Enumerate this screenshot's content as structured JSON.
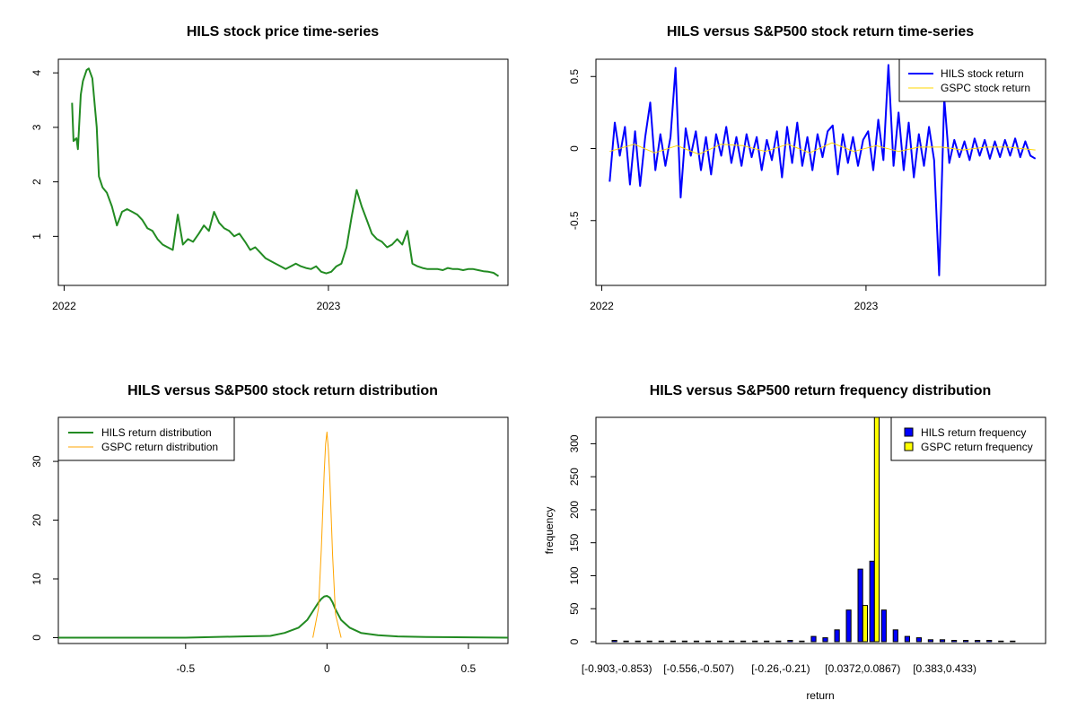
{
  "chart_data": [
    {
      "type": "line",
      "title": "HILS stock price time-series",
      "xlabel": "",
      "ylabel": "",
      "x_ticks": [
        "2022",
        "2023"
      ],
      "y_ticks": [
        1,
        2,
        3,
        4
      ],
      "ylim": [
        0.1,
        4.25
      ],
      "colors": {
        "series": "#228B22"
      },
      "series": [
        {
          "x": [
            "2022-01-12",
            "2022-01-14",
            "2022-01-18",
            "2022-01-20",
            "2022-01-24",
            "2022-01-27",
            "2022-02-01",
            "2022-02-04",
            "2022-02-09",
            "2022-02-15",
            "2022-02-18",
            "2022-02-23",
            "2022-03-01",
            "2022-03-08",
            "2022-03-15",
            "2022-03-22",
            "2022-03-29",
            "2022-04-05",
            "2022-04-12",
            "2022-04-19",
            "2022-04-26",
            "2022-05-03",
            "2022-05-10",
            "2022-05-17",
            "2022-05-24",
            "2022-05-31",
            "2022-06-07",
            "2022-06-14",
            "2022-06-21",
            "2022-06-28",
            "2022-07-06",
            "2022-07-13",
            "2022-07-20",
            "2022-07-27",
            "2022-08-03",
            "2022-08-10",
            "2022-08-17",
            "2022-08-24",
            "2022-08-31",
            "2022-09-08",
            "2022-09-15",
            "2022-09-22",
            "2022-09-29",
            "2022-10-06",
            "2022-10-13",
            "2022-10-20",
            "2022-10-27",
            "2022-11-03",
            "2022-11-10",
            "2022-11-17",
            "2022-11-24",
            "2022-12-01",
            "2022-12-08",
            "2022-12-15",
            "2022-12-22",
            "2022-12-29",
            "2023-01-05",
            "2023-01-12",
            "2023-01-19",
            "2023-01-26",
            "2023-02-02",
            "2023-02-09",
            "2023-02-16",
            "2023-02-23",
            "2023-03-02",
            "2023-03-09",
            "2023-03-16",
            "2023-03-23",
            "2023-03-30",
            "2023-04-06",
            "2023-04-13",
            "2023-04-20",
            "2023-04-27",
            "2023-05-04",
            "2023-05-11",
            "2023-05-18",
            "2023-05-25",
            "2023-06-01",
            "2023-06-08",
            "2023-06-15",
            "2023-06-22",
            "2023-06-29",
            "2023-07-06",
            "2023-07-13",
            "2023-07-20",
            "2023-07-27",
            "2023-08-03",
            "2023-08-10",
            "2023-08-17",
            "2023-08-24"
          ],
          "y": [
            3.45,
            2.75,
            2.8,
            2.6,
            3.6,
            3.85,
            4.05,
            4.08,
            3.9,
            3.0,
            2.1,
            1.9,
            1.8,
            1.55,
            1.2,
            1.45,
            1.5,
            1.45,
            1.4,
            1.3,
            1.15,
            1.1,
            0.95,
            0.85,
            0.8,
            0.75,
            1.4,
            0.85,
            0.95,
            0.9,
            1.05,
            1.2,
            1.1,
            1.45,
            1.25,
            1.15,
            1.1,
            1.0,
            1.05,
            0.9,
            0.75,
            0.8,
            0.7,
            0.6,
            0.55,
            0.5,
            0.45,
            0.4,
            0.45,
            0.5,
            0.45,
            0.42,
            0.4,
            0.45,
            0.35,
            0.32,
            0.35,
            0.45,
            0.5,
            0.8,
            1.35,
            1.85,
            1.55,
            1.3,
            1.05,
            0.95,
            0.9,
            0.8,
            0.85,
            0.95,
            0.85,
            1.1,
            0.5,
            0.45,
            0.42,
            0.4,
            0.4,
            0.4,
            0.38,
            0.42,
            0.4,
            0.4,
            0.38,
            0.4,
            0.4,
            0.38,
            0.36,
            0.35,
            0.33,
            0.27
          ]
        }
      ]
    },
    {
      "type": "line",
      "title": "HILS versus S&P500 stock return time-series",
      "xlabel": "",
      "ylabel": "",
      "x_ticks": [
        "2022",
        "2023"
      ],
      "y_ticks": [
        -0.5,
        0.0,
        0.5
      ],
      "ylim": [
        -0.95,
        0.62
      ],
      "legend": {
        "placement": "top-right",
        "entries": [
          "HILS stock return",
          "GSPC stock return"
        ]
      },
      "colors": {
        "HILS": "#0000FF",
        "GSPC": "#FFD700"
      },
      "series": [
        {
          "name": "HILS stock return",
          "x": [
            "2022-01-12",
            "2022-01-19",
            "2022-01-26",
            "2022-02-02",
            "2022-02-09",
            "2022-02-16",
            "2022-02-23",
            "2022-03-02",
            "2022-03-09",
            "2022-03-16",
            "2022-03-23",
            "2022-03-30",
            "2022-04-06",
            "2022-04-13",
            "2022-04-20",
            "2022-04-27",
            "2022-05-04",
            "2022-05-11",
            "2022-05-18",
            "2022-05-25",
            "2022-06-01",
            "2022-06-08",
            "2022-06-15",
            "2022-06-22",
            "2022-06-29",
            "2022-07-06",
            "2022-07-13",
            "2022-07-20",
            "2022-07-27",
            "2022-08-03",
            "2022-08-10",
            "2022-08-17",
            "2022-08-24",
            "2022-08-31",
            "2022-09-07",
            "2022-09-14",
            "2022-09-21",
            "2022-09-28",
            "2022-10-05",
            "2022-10-12",
            "2022-10-19",
            "2022-10-26",
            "2022-11-02",
            "2022-11-09",
            "2022-11-16",
            "2022-11-23",
            "2022-11-30",
            "2022-12-07",
            "2022-12-14",
            "2022-12-21",
            "2022-12-28",
            "2023-01-04",
            "2023-01-11",
            "2023-01-18",
            "2023-01-25",
            "2023-02-01",
            "2023-02-08",
            "2023-02-15",
            "2023-02-22",
            "2023-03-01",
            "2023-03-08",
            "2023-03-15",
            "2023-03-22",
            "2023-03-29",
            "2023-04-05",
            "2023-04-12",
            "2023-04-19",
            "2023-04-26",
            "2023-05-03",
            "2023-05-10",
            "2023-05-17",
            "2023-05-24",
            "2023-05-31",
            "2023-06-07",
            "2023-06-14",
            "2023-06-21",
            "2023-06-28",
            "2023-07-05",
            "2023-07-12",
            "2023-07-19",
            "2023-07-26",
            "2023-08-02",
            "2023-08-09",
            "2023-08-16",
            "2023-08-23"
          ],
          "y": [
            -0.23,
            0.18,
            -0.05,
            0.15,
            -0.25,
            0.12,
            -0.26,
            0.08,
            0.32,
            -0.15,
            0.1,
            -0.12,
            0.08,
            0.56,
            -0.34,
            0.14,
            -0.05,
            0.12,
            -0.15,
            0.08,
            -0.18,
            0.1,
            -0.05,
            0.15,
            -0.1,
            0.08,
            -0.12,
            0.1,
            -0.06,
            0.08,
            -0.15,
            0.06,
            -0.08,
            0.12,
            -0.2,
            0.15,
            -0.1,
            0.18,
            -0.12,
            0.08,
            -0.15,
            0.1,
            -0.06,
            0.12,
            0.16,
            -0.18,
            0.1,
            -0.1,
            0.08,
            -0.12,
            0.06,
            0.12,
            -0.15,
            0.2,
            -0.08,
            0.58,
            -0.12,
            0.25,
            -0.15,
            0.18,
            -0.2,
            0.1,
            -0.12,
            0.15,
            -0.08,
            -0.88,
            0.35,
            -0.1,
            0.06,
            -0.06,
            0.05,
            -0.08,
            0.07,
            -0.05,
            0.06,
            -0.07,
            0.05,
            -0.06,
            0.06,
            -0.05,
            0.07,
            -0.06,
            0.05,
            -0.05,
            -0.07
          ]
        },
        {
          "name": "GSPC stock return",
          "x": [
            "2022-01-12",
            "2022-02-15",
            "2022-03-15",
            "2022-04-15",
            "2022-05-15",
            "2022-06-15",
            "2022-07-15",
            "2022-08-15",
            "2022-09-15",
            "2022-10-15",
            "2022-11-15",
            "2022-12-15",
            "2023-01-15",
            "2023-02-15",
            "2023-03-15",
            "2023-04-15",
            "2023-05-15",
            "2023-06-15",
            "2023-07-15",
            "2023-08-23"
          ],
          "y": [
            -0.02,
            0.03,
            -0.03,
            0.02,
            -0.04,
            0.03,
            0.02,
            -0.02,
            0.03,
            -0.03,
            0.04,
            -0.02,
            0.02,
            -0.02,
            0.01,
            0.01,
            -0.01,
            0.01,
            0.01,
            -0.01
          ]
        }
      ]
    },
    {
      "type": "line",
      "title": "HILS versus S&P500 stock return distribution",
      "xlabel": "",
      "ylabel": "",
      "x_ticks": [
        -0.5,
        0.0,
        0.5
      ],
      "y_ticks": [
        0,
        10,
        20,
        30
      ],
      "xlim": [
        -0.95,
        0.64
      ],
      "ylim": [
        -1,
        37.5
      ],
      "legend": {
        "placement": "top-left",
        "entries": [
          "HILS return distribution",
          "GSPC return distribution"
        ]
      },
      "colors": {
        "HILS": "#228B22",
        "GSPC": "#FFA500"
      },
      "series": [
        {
          "name": "HILS return distribution",
          "x": [
            -0.95,
            -0.5,
            -0.3,
            -0.2,
            -0.15,
            -0.1,
            -0.07,
            -0.05,
            -0.03,
            -0.02,
            -0.01,
            0.0,
            0.01,
            0.02,
            0.03,
            0.05,
            0.08,
            0.12,
            0.18,
            0.25,
            0.35,
            0.5,
            0.64
          ],
          "y": [
            0.0,
            0.0,
            0.2,
            0.3,
            0.8,
            1.7,
            3.0,
            4.5,
            6.0,
            6.6,
            7.0,
            7.1,
            6.8,
            6.0,
            4.8,
            3.0,
            1.7,
            0.8,
            0.4,
            0.2,
            0.1,
            0.05,
            0.0
          ]
        },
        {
          "name": "GSPC return distribution",
          "x": [
            -0.05,
            -0.03,
            -0.02,
            -0.01,
            -0.005,
            0.0,
            0.005,
            0.01,
            0.02,
            0.03,
            0.05
          ],
          "y": [
            0.0,
            5.0,
            15.0,
            28.0,
            33.0,
            35.0,
            32.0,
            27.0,
            14.0,
            4.0,
            0.0
          ]
        }
      ]
    },
    {
      "type": "bar",
      "title": "HILS versus S&P500 return frequency distribution",
      "xlabel": "return",
      "ylabel": "frequency",
      "x_tick_labels": [
        "[-0.903,-0.853)",
        "[-0.556,-0.507)",
        "[-0.26,-0.21)",
        "[0.0372,0.0867)",
        "[0.383,0.433)"
      ],
      "y_ticks": [
        0,
        50,
        100,
        150,
        200,
        250,
        300
      ],
      "ylim": [
        0,
        340
      ],
      "legend": {
        "placement": "top-right",
        "entries": [
          "HILS return frequency",
          "GSPC return frequency"
        ]
      },
      "colors": {
        "HILS": "#0000FF",
        "GSPC": "#FFFF00"
      },
      "series": [
        {
          "name": "HILS return frequency",
          "values": [
            2,
            1,
            1,
            1,
            1,
            1,
            1,
            1,
            1,
            1,
            1,
            1,
            1,
            1,
            1,
            2,
            1,
            8,
            6,
            18,
            48,
            110,
            122,
            48,
            18,
            8,
            6,
            3,
            3,
            2,
            2,
            2,
            2,
            1,
            1
          ]
        },
        {
          "name": "GSPC return frequency",
          "values": [
            0,
            0,
            0,
            0,
            0,
            0,
            0,
            0,
            0,
            0,
            0,
            0,
            0,
            0,
            0,
            0,
            0,
            0,
            0,
            0,
            0,
            55,
            345,
            0,
            0,
            0,
            0,
            0,
            0,
            0,
            0,
            0,
            0,
            0,
            0
          ]
        }
      ]
    }
  ]
}
